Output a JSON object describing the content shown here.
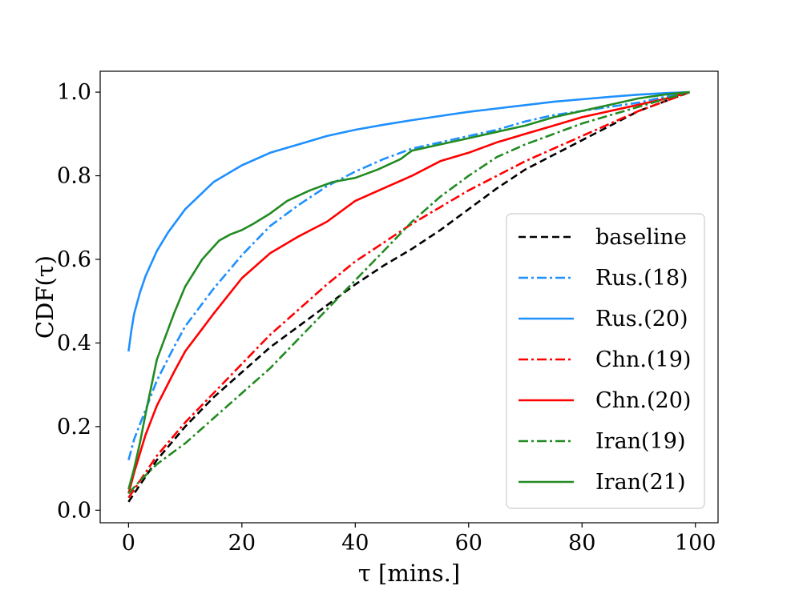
{
  "chart_data": {
    "type": "line",
    "title": "",
    "xlabel": "τ [mins.]",
    "ylabel": "CDF(τ)",
    "xlim": [
      -5,
      104
    ],
    "ylim": [
      -0.03,
      1.05
    ],
    "xticks": [
      0,
      20,
      40,
      60,
      80,
      100
    ],
    "yticks": [
      0.0,
      0.2,
      0.4,
      0.6,
      0.8,
      1.0
    ],
    "xtick_labels": [
      "0",
      "20",
      "40",
      "60",
      "80",
      "100"
    ],
    "ytick_labels": [
      "0.0",
      "0.2",
      "0.4",
      "0.6",
      "0.8",
      "1.0"
    ],
    "grid": false,
    "legend_position": "lower-right",
    "series": [
      {
        "name": "baseline",
        "color": "#000000",
        "style": "dashed",
        "x": [
          0,
          2,
          5,
          10,
          15,
          20,
          25,
          30,
          35,
          40,
          45,
          50,
          55,
          60,
          65,
          70,
          75,
          80,
          85,
          90,
          95,
          99
        ],
        "y": [
          0.02,
          0.06,
          0.12,
          0.2,
          0.27,
          0.33,
          0.39,
          0.44,
          0.49,
          0.54,
          0.585,
          0.625,
          0.67,
          0.72,
          0.77,
          0.815,
          0.85,
          0.885,
          0.92,
          0.955,
          0.98,
          1.0
        ]
      },
      {
        "name": "Rus.(18)",
        "color": "#1e90ff",
        "style": "dashdot",
        "x": [
          0,
          1,
          3,
          5,
          8,
          10,
          15,
          20,
          25,
          30,
          35,
          40,
          45,
          50,
          55,
          60,
          65,
          70,
          75,
          80,
          85,
          90,
          95,
          99
        ],
        "y": [
          0.12,
          0.17,
          0.24,
          0.31,
          0.39,
          0.44,
          0.53,
          0.61,
          0.68,
          0.73,
          0.775,
          0.81,
          0.84,
          0.865,
          0.88,
          0.895,
          0.91,
          0.93,
          0.945,
          0.955,
          0.965,
          0.975,
          0.99,
          1.0
        ]
      },
      {
        "name": "Rus.(20)",
        "color": "#1e90ff",
        "style": "solid",
        "x": [
          0,
          0.5,
          1,
          2,
          3,
          5,
          7,
          10,
          15,
          20,
          25,
          30,
          35,
          40,
          45,
          50,
          55,
          60,
          65,
          70,
          75,
          80,
          85,
          90,
          95,
          99
        ],
        "y": [
          0.38,
          0.43,
          0.47,
          0.52,
          0.56,
          0.62,
          0.665,
          0.72,
          0.785,
          0.825,
          0.855,
          0.875,
          0.895,
          0.91,
          0.922,
          0.933,
          0.943,
          0.953,
          0.961,
          0.969,
          0.977,
          0.983,
          0.989,
          0.994,
          0.998,
          1.0
        ]
      },
      {
        "name": "Chn.(19)",
        "color": "#ff0000",
        "style": "dashdot",
        "x": [
          0,
          2,
          5,
          10,
          15,
          20,
          25,
          30,
          35,
          40,
          45,
          50,
          55,
          60,
          65,
          70,
          75,
          80,
          85,
          90,
          95,
          99
        ],
        "y": [
          0.03,
          0.07,
          0.13,
          0.21,
          0.28,
          0.35,
          0.42,
          0.48,
          0.54,
          0.595,
          0.64,
          0.685,
          0.725,
          0.765,
          0.8,
          0.835,
          0.865,
          0.895,
          0.925,
          0.955,
          0.98,
          1.0
        ]
      },
      {
        "name": "Chn.(20)",
        "color": "#ff0000",
        "style": "solid",
        "x": [
          0,
          1,
          3,
          5,
          8,
          10,
          15,
          20,
          25,
          30,
          35,
          40,
          45,
          50,
          55,
          60,
          65,
          70,
          75,
          80,
          85,
          90,
          95,
          99
        ],
        "y": [
          0.04,
          0.09,
          0.18,
          0.25,
          0.33,
          0.38,
          0.47,
          0.555,
          0.615,
          0.655,
          0.69,
          0.74,
          0.77,
          0.8,
          0.835,
          0.855,
          0.88,
          0.9,
          0.92,
          0.94,
          0.955,
          0.97,
          0.985,
          1.0
        ]
      },
      {
        "name": "Iran(19)",
        "color": "#228b22",
        "style": "dashdot",
        "x": [
          0,
          2,
          5,
          10,
          15,
          20,
          25,
          30,
          35,
          40,
          45,
          50,
          55,
          60,
          65,
          70,
          75,
          80,
          85,
          90,
          95,
          99
        ],
        "y": [
          0.04,
          0.07,
          0.11,
          0.16,
          0.22,
          0.28,
          0.34,
          0.41,
          0.48,
          0.55,
          0.62,
          0.69,
          0.75,
          0.8,
          0.845,
          0.875,
          0.9,
          0.925,
          0.945,
          0.965,
          0.985,
          1.0
        ]
      },
      {
        "name": "Iran(21)",
        "color": "#228b22",
        "style": "solid",
        "x": [
          0,
          1,
          2,
          3,
          5,
          8,
          10,
          13,
          16,
          18,
          20,
          22,
          25,
          28,
          32,
          36,
          40,
          44,
          48,
          50,
          55,
          60,
          65,
          70,
          75,
          80,
          85,
          90,
          95,
          99
        ],
        "y": [
          0.05,
          0.1,
          0.16,
          0.23,
          0.36,
          0.47,
          0.535,
          0.6,
          0.645,
          0.66,
          0.67,
          0.685,
          0.71,
          0.74,
          0.765,
          0.785,
          0.795,
          0.815,
          0.84,
          0.86,
          0.875,
          0.89,
          0.905,
          0.92,
          0.94,
          0.955,
          0.97,
          0.985,
          0.995,
          1.0
        ]
      }
    ]
  }
}
